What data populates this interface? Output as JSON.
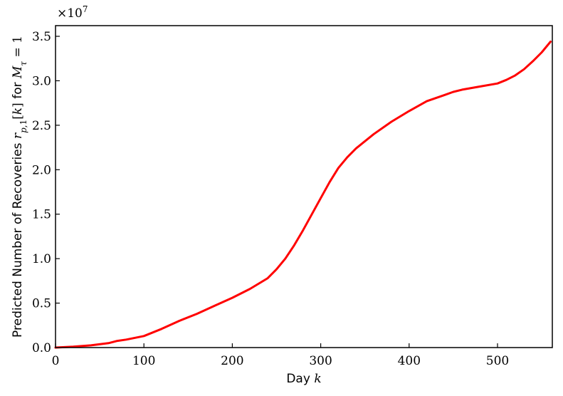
{
  "chart_data": {
    "type": "line",
    "title": "",
    "xlabel": "Day k",
    "ylabel": "Predicted Number of Recoveries r_{p,1}[k] for M_τ = 1",
    "offset_text": "×10^7",
    "xlim": [
      0,
      562
    ],
    "ylim": [
      0,
      3.62
    ],
    "y_scale_factor": 10000000,
    "grid": false,
    "x_ticks": [
      0,
      100,
      200,
      300,
      400,
      500
    ],
    "y_ticks": [
      0.0,
      0.5,
      1.0,
      1.5,
      2.0,
      2.5,
      3.0,
      3.5
    ],
    "x_tick_labels": [
      "0",
      "100",
      "200",
      "300",
      "400",
      "500"
    ],
    "y_tick_labels": [
      "0.0",
      "0.5",
      "1.0",
      "1.5",
      "2.0",
      "2.5",
      "3.0",
      "3.5"
    ],
    "series": [
      {
        "color": "#ff0000",
        "x": [
          0,
          20,
          40,
          60,
          70,
          80,
          100,
          120,
          140,
          160,
          180,
          200,
          220,
          240,
          250,
          260,
          270,
          280,
          290,
          300,
          310,
          320,
          330,
          340,
          350,
          360,
          380,
          400,
          420,
          440,
          450,
          460,
          480,
          500,
          510,
          520,
          530,
          540,
          550,
          560
        ],
        "y": [
          0.0,
          0.01,
          0.025,
          0.05,
          0.075,
          0.09,
          0.13,
          0.21,
          0.3,
          0.38,
          0.47,
          0.56,
          0.66,
          0.78,
          0.88,
          1.0,
          1.15,
          1.32,
          1.5,
          1.68,
          1.86,
          2.02,
          2.14,
          2.24,
          2.32,
          2.4,
          2.54,
          2.66,
          2.77,
          2.84,
          2.875,
          2.9,
          2.935,
          2.97,
          3.01,
          3.06,
          3.13,
          3.22,
          3.32,
          3.44
        ]
      }
    ]
  }
}
